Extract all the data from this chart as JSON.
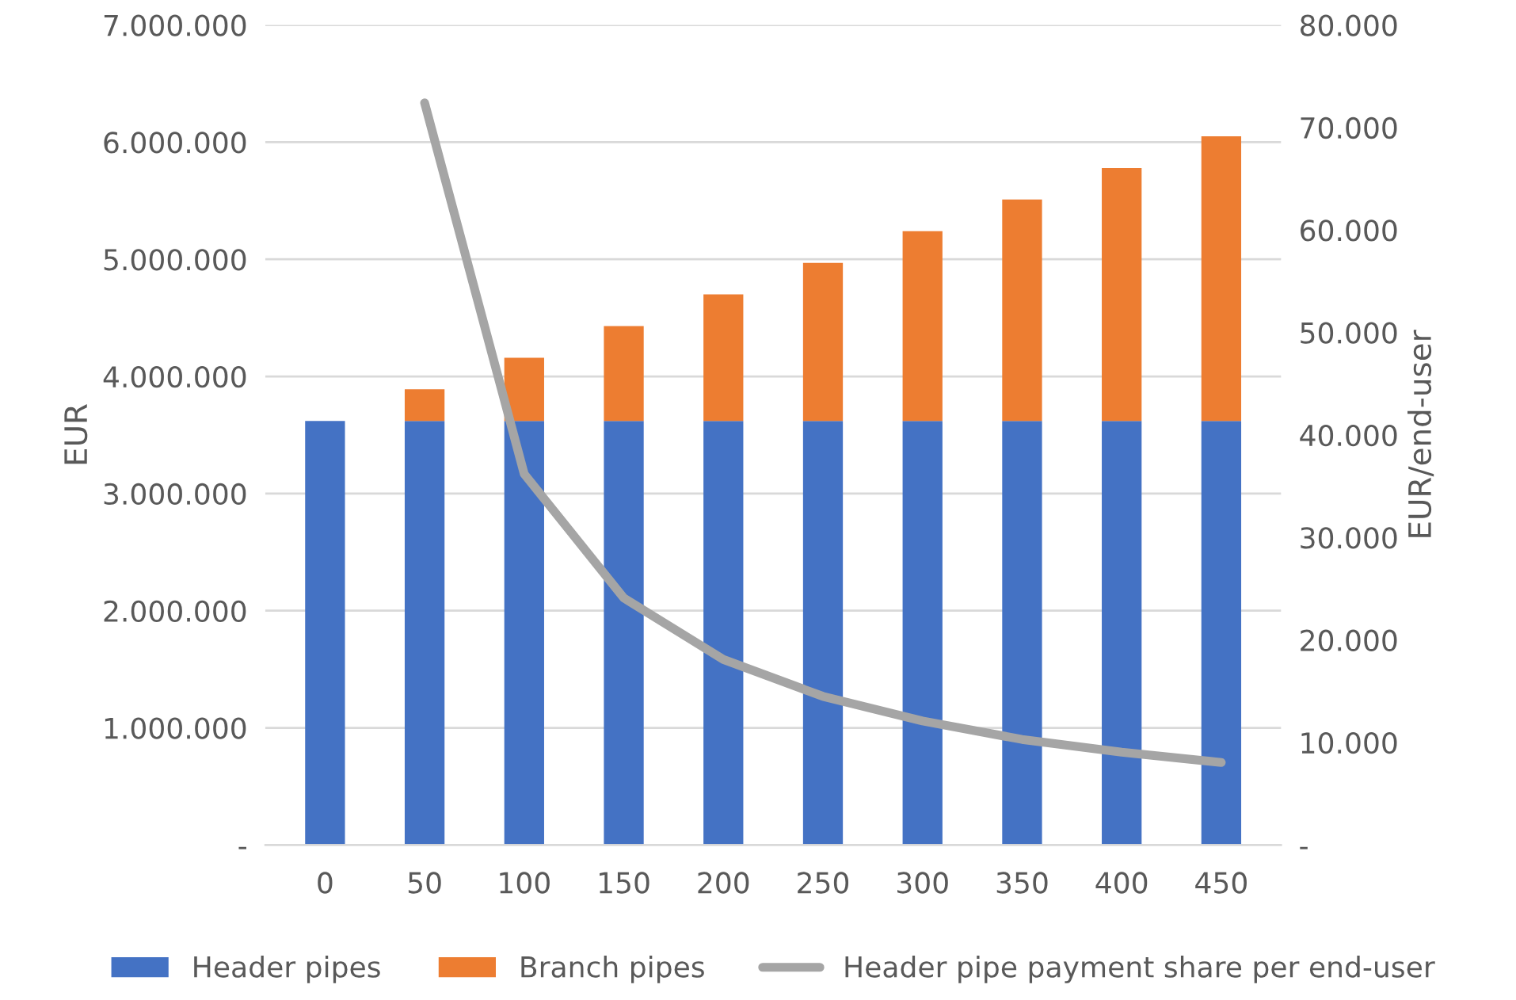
{
  "chart_data": {
    "type": "bar",
    "stacked": true,
    "ylabel": "EUR",
    "y2label": "EUR/end-user",
    "categories": [
      "0",
      "50",
      "100",
      "150",
      "200",
      "250",
      "300",
      "350",
      "400",
      "450"
    ],
    "series": [
      {
        "name": "Header pipes",
        "color": "#4472c4",
        "values": [
          3620000,
          3620000,
          3620000,
          3620000,
          3620000,
          3620000,
          3620000,
          3620000,
          3620000,
          3620000
        ]
      },
      {
        "name": "Branch pipes",
        "color": "#ed7d31",
        "values": [
          0,
          270000,
          540000,
          810000,
          1080000,
          1350000,
          1620000,
          1890000,
          2160000,
          2430000
        ]
      },
      {
        "name": "Header pipe payment share per end-user",
        "type": "line",
        "axis": "y2",
        "color": "#a5a5a5",
        "marker": "none",
        "line_style": "solid",
        "values": [
          null,
          72400,
          36200,
          24100,
          18100,
          14500,
          12100,
          10300,
          9050,
          8050
        ]
      }
    ],
    "ylim": [
      0,
      7000000
    ],
    "yticks": [
      {
        "value": 0,
        "label": "-"
      },
      {
        "value": 1000000,
        "label": "1.000.000"
      },
      {
        "value": 2000000,
        "label": "2.000.000"
      },
      {
        "value": 3000000,
        "label": "3.000.000"
      },
      {
        "value": 4000000,
        "label": "4.000.000"
      },
      {
        "value": 5000000,
        "label": "5.000.000"
      },
      {
        "value": 6000000,
        "label": "6.000.000"
      },
      {
        "value": 7000000,
        "label": "7.000.000"
      }
    ],
    "y2lim": [
      0,
      80000
    ],
    "y2ticks": [
      {
        "value": 0,
        "label": "-"
      },
      {
        "value": 10000,
        "label": "10.000"
      },
      {
        "value": 20000,
        "label": "20.000"
      },
      {
        "value": 30000,
        "label": "30.000"
      },
      {
        "value": 40000,
        "label": "40.000"
      },
      {
        "value": 50000,
        "label": "50.000"
      },
      {
        "value": 60000,
        "label": "60.000"
      },
      {
        "value": 70000,
        "label": "70.000"
      },
      {
        "value": 80000,
        "label": "80.000"
      }
    ],
    "grid": "y",
    "legend": "bottom"
  }
}
